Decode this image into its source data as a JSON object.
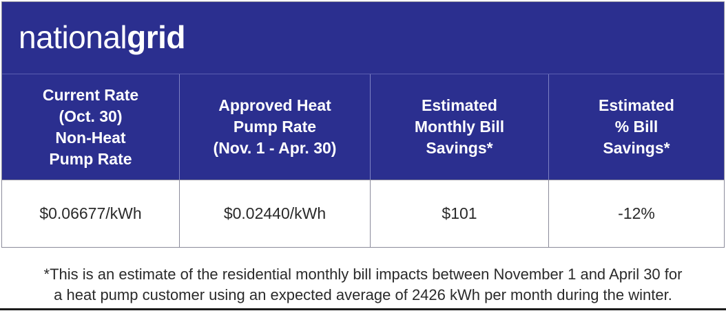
{
  "brand": {
    "light": "national",
    "bold": "grid"
  },
  "colors": {
    "header_bg": "#2b2f8f",
    "text_light": "#ffffff",
    "text_dark": "#2a2a2a"
  },
  "table": {
    "headers": [
      "Current Rate\n(Oct. 30)\nNon-Heat\nPump Rate",
      "Approved Heat\nPump Rate\n(Nov. 1 - Apr. 30)",
      "Estimated\nMonthly Bill\nSavings*",
      "Estimated\n% Bill\nSavings*"
    ],
    "row": [
      "$0.06677/kWh",
      "$0.02440/kWh",
      "$101",
      "-12%"
    ]
  },
  "footnote": "*This is an estimate of the residential monthly bill impacts between November 1 and April 30 for\na heat pump customer using an expected average of 2426 kWh per month during the winter."
}
